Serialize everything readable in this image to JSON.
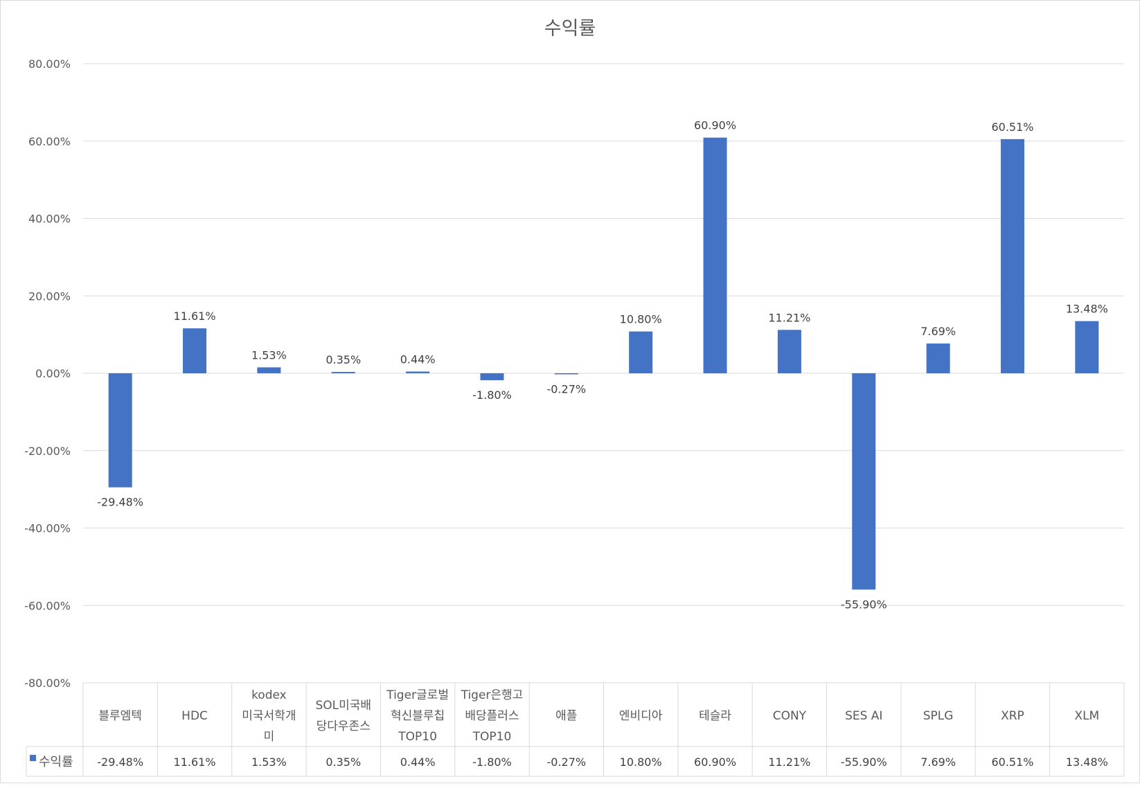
{
  "chart_data": {
    "type": "bar",
    "title": "수익률",
    "categories": [
      "블루엠텍",
      "HDC",
      "kodex 미국서학개미",
      "SOL미국배당다우존스",
      "Tiger글로벌혁신블루칩TOP10",
      "Tiger은행고배당플러스TOP10",
      "애플",
      "엔비디아",
      "테슬라",
      "CONY",
      "SES AI",
      "SPLG",
      "XRP",
      "XLM"
    ],
    "category_lines": [
      [
        "블루엠텍"
      ],
      [
        "HDC"
      ],
      [
        "kodex",
        "미국서학개",
        "미"
      ],
      [
        "SOL미국배",
        "당다우존스"
      ],
      [
        "Tiger글로벌",
        "혁신블루칩",
        "TOP10"
      ],
      [
        "Tiger은행고",
        "배당플러스",
        "TOP10"
      ],
      [
        "애플"
      ],
      [
        "엔비디아"
      ],
      [
        "테슬라"
      ],
      [
        "CONY"
      ],
      [
        "SES AI"
      ],
      [
        "SPLG"
      ],
      [
        "XRP"
      ],
      [
        "XLM"
      ]
    ],
    "series": [
      {
        "name": "수익률",
        "values": [
          -29.48,
          11.61,
          1.53,
          0.35,
          0.44,
          -1.8,
          -0.27,
          10.8,
          60.9,
          11.21,
          -55.9,
          7.69,
          60.51,
          13.48
        ],
        "labels": [
          "-29.48%",
          "11.61%",
          "1.53%",
          "0.35%",
          "0.44%",
          "-1.80%",
          "-0.27%",
          "10.80%",
          "60.90%",
          "11.21%",
          "-55.90%",
          "7.69%",
          "60.51%",
          "13.48%"
        ]
      }
    ],
    "ylim": [
      -80,
      80
    ],
    "yticks": [
      80,
      60,
      40,
      20,
      0,
      -20,
      -40,
      -60,
      -80
    ],
    "ytick_labels": [
      "80.00%",
      "60.00%",
      "40.00%",
      "20.00%",
      "0.00%",
      "-20.00%",
      "-40.00%",
      "-60.00%",
      "-80.00%"
    ],
    "grid": true,
    "legend": "data-table",
    "bar_color": "#4472C4"
  }
}
